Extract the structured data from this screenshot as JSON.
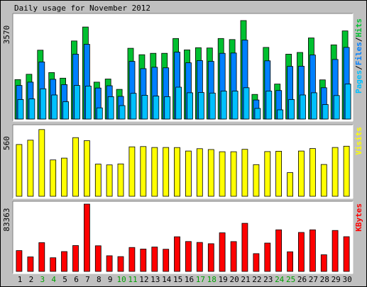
{
  "chart_data": {
    "type": "bar",
    "title": "Daily usage for November 2012",
    "categories": [
      "1",
      "2",
      "3",
      "4",
      "5",
      "6",
      "7",
      "8",
      "9",
      "10",
      "11",
      "12",
      "13",
      "14",
      "15",
      "16",
      "17",
      "18",
      "19",
      "20",
      "21",
      "22",
      "23",
      "24",
      "25",
      "26",
      "27",
      "28",
      "29",
      "30"
    ],
    "weekend_days": [
      "3",
      "4",
      "10",
      "11",
      "17",
      "18",
      "24",
      "25"
    ],
    "colors": {
      "hits": "#00c030",
      "files": "#0080ff",
      "pages": "#00c0ff",
      "visits": "#ffff00",
      "kbytes": "#ff0000",
      "weekday_label": "#000000",
      "weekend_label": "#00a000",
      "panel_bg": "#ffffff",
      "border": "#000000",
      "outer_bg": "#c0c0c0"
    },
    "panels": [
      {
        "id": "pages-files-hits",
        "ymax_label": "3570",
        "ylim": [
          0,
          3570
        ],
        "legend_parts": [
          {
            "text": "Pages",
            "color": "#00c0ff"
          },
          {
            "text": "/",
            "color": "#000000"
          },
          {
            "text": "Files",
            "color": "#0080ff"
          },
          {
            "text": "/",
            "color": "#000000"
          },
          {
            "text": "Hits",
            "color": "#00c030"
          }
        ],
        "series": [
          {
            "name": "Hits",
            "values": [
              1410,
              1600,
              2460,
              1660,
              1460,
              2790,
              3290,
              1320,
              1430,
              1060,
              2530,
              2300,
              2350,
              2350,
              2880,
              2470,
              2550,
              2540,
              2880,
              2840,
              3520,
              880,
              2560,
              1250,
              2320,
              2380,
              2900,
              1400,
              2650,
              3150
            ]
          },
          {
            "name": "Files",
            "values": [
              1200,
              1320,
              2040,
              1420,
              1230,
              2320,
              2670,
              1110,
              1190,
              810,
              2060,
              1800,
              1850,
              1830,
              2390,
              2010,
              2090,
              2060,
              2350,
              2360,
              2820,
              680,
              2080,
              1020,
              1880,
              1890,
              2290,
              1120,
              2130,
              2560
            ]
          },
          {
            "name": "Pages",
            "values": [
              700,
              720,
              1080,
              860,
              620,
              1200,
              1180,
              400,
              800,
              480,
              920,
              850,
              820,
              800,
              1140,
              940,
              950,
              930,
              1000,
              1000,
              1120,
              380,
              1000,
              330,
              700,
              860,
              940,
              520,
              840,
              1250
            ]
          }
        ]
      },
      {
        "id": "visits",
        "ymax_label": "560",
        "ylim": [
          0,
          560
        ],
        "legend_parts": [
          {
            "text": "Visits",
            "color": "#ffff00"
          }
        ],
        "series": [
          {
            "name": "Visits",
            "values": [
              422,
              457,
              544,
              296,
              311,
              478,
              453,
              262,
              256,
              264,
              403,
              405,
              398,
              398,
              397,
              369,
              388,
              381,
              363,
              363,
              383,
              258,
              364,
              367,
              193,
              369,
              389,
              259,
              398,
              408
            ]
          }
        ]
      },
      {
        "id": "kbytes",
        "ymax_label": "83363",
        "ylim": [
          0,
          83363
        ],
        "legend_parts": [
          {
            "text": "KBytes",
            "color": "#ff0000"
          }
        ],
        "series": [
          {
            "name": "KBytes",
            "values": [
              25800,
              18000,
              35600,
              16900,
              24600,
              32000,
              83363,
              31800,
              19400,
              18300,
              29700,
              27700,
              30200,
              27500,
              42900,
              37000,
              35900,
              34300,
              47800,
              36900,
              59600,
              22000,
              35100,
              51500,
              24300,
              48300,
              51500,
              20600,
              50700,
              43000
            ]
          }
        ]
      }
    ]
  }
}
